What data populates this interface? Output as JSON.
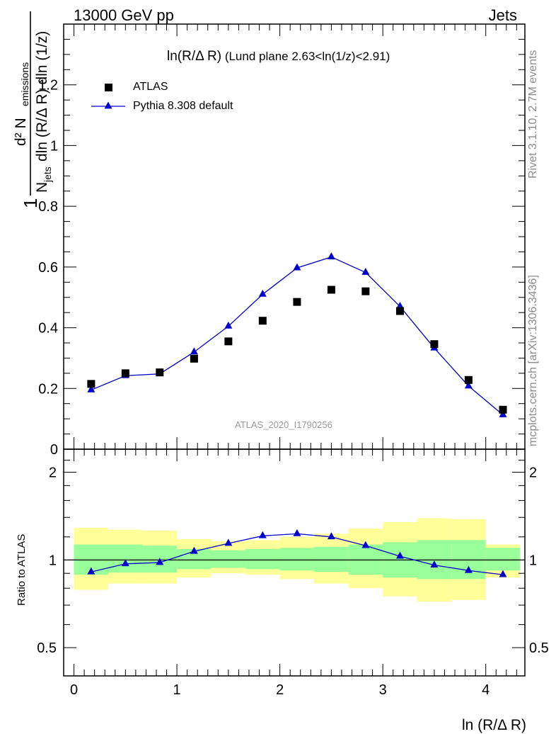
{
  "header": {
    "left": "13000 GeV pp",
    "right": "Jets"
  },
  "side_labels": {
    "rivet": "Rivet 3.1.10,  2.7M events",
    "mcplots": "mcplots.cern.ch [arXiv:1306.3436]"
  },
  "main_plot": {
    "title_main": "ln(R/Δ R)",
    "title_sub": " (Lund plane 2.63<ln(1/z)<2.91)",
    "ylabel": {
      "one": "1",
      "numer": "d² N",
      "numer_sub": "emissions",
      "denom_N": "N",
      "denom_sub": "jets",
      "denom_rest": "dln (R/Δ R) dln (1/z)"
    },
    "analysis_tag": "ATLAS_2020_I1790256"
  },
  "ratio_plot": {
    "ylabel": "Ratio to ATLAS"
  },
  "xlabel": "ln (R/Δ R)",
  "legend": [
    {
      "name": "ATLAS",
      "marker": "square",
      "color": "#000000"
    },
    {
      "name": "Pythia 8.308 default",
      "marker": "triangle",
      "color": "#0000cc"
    }
  ],
  "colors": {
    "band_inner": "#99ff99",
    "band_outer": "#ffff99",
    "mc": "#0000cc",
    "data": "#000000",
    "side_text": "#8c8c8c"
  },
  "chart_data": [
    {
      "type": "scatter",
      "title": "ln(R/Δ R) (Lund plane 2.63<ln(1/z)<2.91)",
      "xlabel": "ln (R/Δ R)",
      "ylabel": "1/N_jets d² N_emissions / dln (R/Δ R) dln (1/z)",
      "xlim": [
        -0.1,
        4.38
      ],
      "ylim": [
        0,
        1.4
      ],
      "yticks": [
        0,
        0.2,
        0.4,
        0.6,
        0.8,
        1,
        1.2
      ],
      "ytick_labels": [
        "0",
        "0.2",
        "0.4",
        "0.6",
        "0.8",
        "1",
        "1.2"
      ],
      "x": [
        0.167,
        0.5,
        0.833,
        1.167,
        1.5,
        1.833,
        2.167,
        2.5,
        2.833,
        3.167,
        3.5,
        3.833,
        4.167
      ],
      "series": [
        {
          "name": "ATLAS",
          "marker": "square",
          "values": [
            0.215,
            0.25,
            0.253,
            0.298,
            0.355,
            0.423,
            0.485,
            0.525,
            0.52,
            0.455,
            0.346,
            0.228,
            0.13
          ]
        },
        {
          "name": "Pythia 8.308 default",
          "marker": "triangle",
          "values": [
            0.195,
            0.242,
            0.248,
            0.32,
            0.405,
            0.51,
            0.597,
            0.633,
            0.582,
            0.47,
            0.333,
            0.208,
            0.113
          ]
        }
      ]
    },
    {
      "type": "line",
      "ylabel": "Ratio to ATLAS",
      "xlabel": "ln (R/Δ R)",
      "ylim": [
        0.4,
        2.4
      ],
      "log_y": true,
      "yticks": [
        0.5,
        1,
        2
      ],
      "ytick_labels": [
        "0.5",
        "1",
        "2"
      ],
      "xticks": [
        0,
        1,
        2,
        3,
        4
      ],
      "xtick_labels": [
        "0",
        "1",
        "2",
        "3",
        "4"
      ],
      "bin_edges": [
        0,
        0.333,
        0.667,
        1.0,
        1.333,
        1.667,
        2.0,
        2.333,
        2.667,
        3.0,
        3.333,
        3.667,
        4.0,
        4.333
      ],
      "x": [
        0.167,
        0.5,
        0.833,
        1.167,
        1.5,
        1.833,
        2.167,
        2.5,
        2.833,
        3.167,
        3.5,
        3.833,
        4.167
      ],
      "series": [
        {
          "name": "Pythia 8.308 default",
          "values": [
            0.91,
            0.97,
            0.98,
            1.07,
            1.14,
            1.21,
            1.23,
            1.2,
            1.12,
            1.03,
            0.96,
            0.92,
            0.89
          ]
        }
      ],
      "bands": {
        "inner_low": [
          0.89,
          0.905,
          0.905,
          0.93,
          0.94,
          0.93,
          0.92,
          0.91,
          0.89,
          0.87,
          0.86,
          0.86,
          0.92
        ],
        "inner_high": [
          1.13,
          1.13,
          1.12,
          1.09,
          1.08,
          1.09,
          1.1,
          1.11,
          1.13,
          1.15,
          1.17,
          1.17,
          1.1
        ],
        "outer_low": [
          0.79,
          0.83,
          0.83,
          0.87,
          0.9,
          0.89,
          0.86,
          0.83,
          0.8,
          0.75,
          0.72,
          0.73,
          0.87
        ],
        "outer_high": [
          1.29,
          1.27,
          1.26,
          1.18,
          1.16,
          1.17,
          1.2,
          1.23,
          1.28,
          1.35,
          1.39,
          1.38,
          1.13
        ]
      }
    }
  ]
}
